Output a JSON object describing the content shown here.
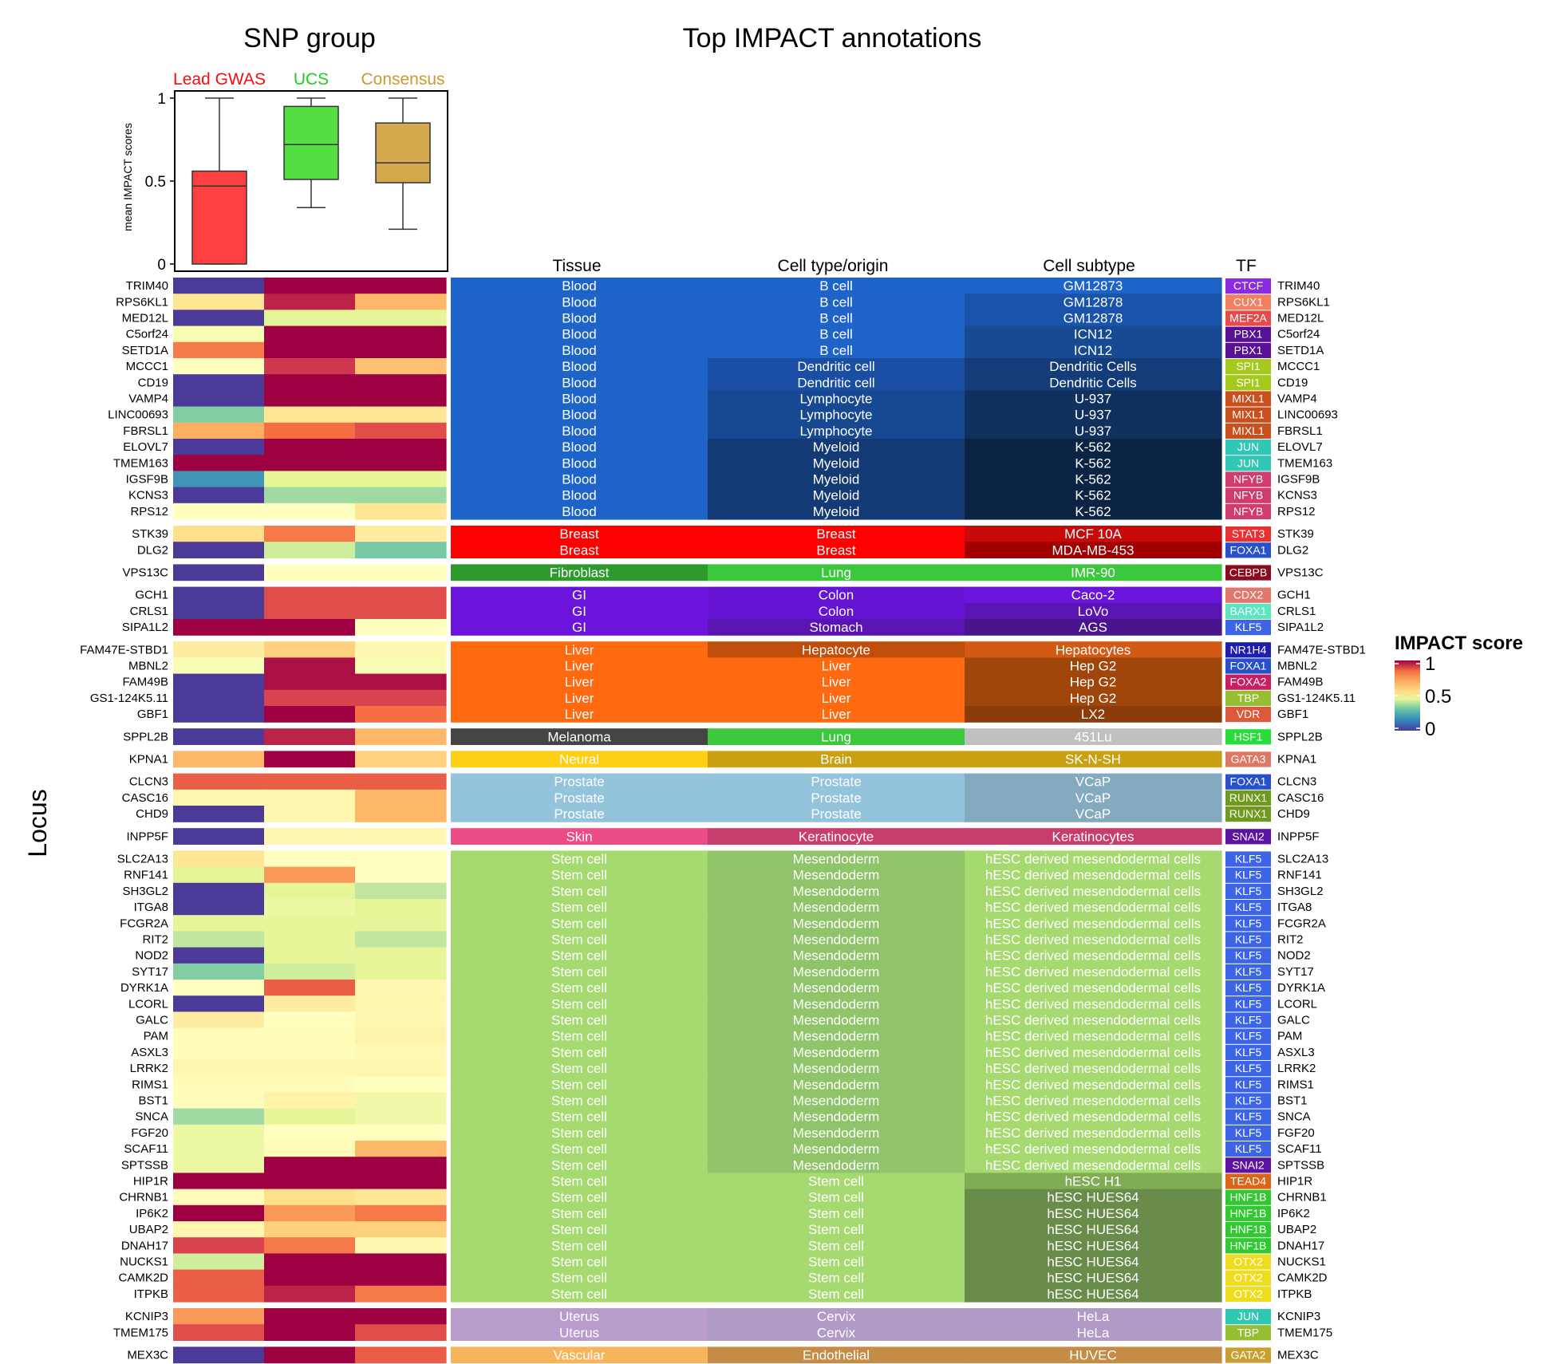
{
  "headers": {
    "snp_group": "SNP group",
    "top_impact": "Top IMPACT annotations",
    "locus_axis": "Locus",
    "tissue": "Tissue",
    "cell_type": "Cell type/origin",
    "cell_subtype": "Cell subtype",
    "tf": "TF"
  },
  "legend": {
    "title": "IMPACT score",
    "max_label": "1",
    "mid_label": "0.5",
    "min_label": "0"
  },
  "colors": {
    "low": "#4b3a97",
    "mid": "#fdfebd",
    "high": "#9e0142"
  },
  "chart_data": [
    {
      "type": "box",
      "ylabel": "mean IMPACT scores",
      "ylim": [
        0,
        1
      ],
      "yticks": [
        "0",
        "0.5",
        "1"
      ],
      "boxes": [
        {
          "name": "Lead GWAS",
          "color": "#ff4040",
          "label_color": "#ee1111",
          "min": 0.0,
          "q1": 0.0,
          "median": 0.47,
          "q3": 0.56,
          "max": 1.0
        },
        {
          "name": "UCS",
          "color": "#55dd44",
          "label_color": "#22cc22",
          "min": 0.34,
          "q1": 0.51,
          "median": 0.72,
          "q3": 0.95,
          "max": 1.0
        },
        {
          "name": "Consensus",
          "color": "#d4a84c",
          "label_color": "#c99a2e",
          "min": 0.21,
          "q1": 0.49,
          "median": 0.61,
          "q3": 0.85,
          "max": 1.0
        }
      ]
    },
    {
      "type": "heatmap",
      "columns": [
        "Lead GWAS",
        "UCS",
        "Consensus"
      ],
      "groups": [
        {
          "loci": [
            [
              "TRIM40",
              0.0,
              1.0,
              1.0,
              "Blood",
              "B cell",
              "GM12873",
              "CTCF",
              "#8a2be2"
            ],
            [
              "RPS6KL1",
              0.6,
              0.95,
              0.7,
              "Blood",
              "B cell",
              "GM12878",
              "CUX1",
              "#f08060"
            ],
            [
              "MED12L",
              0.0,
              0.45,
              0.45,
              "Blood",
              "B cell",
              "GM12878",
              "MEF2A",
              "#e64a4a"
            ],
            [
              "C5orf24",
              0.5,
              1.0,
              1.0,
              "Blood",
              "B cell",
              "ICN12",
              "PBX1",
              "#5a1094"
            ],
            [
              "SETD1A",
              0.8,
              1.0,
              1.0,
              "Blood",
              "B cell",
              "ICN12",
              "PBX1",
              "#5a1094"
            ],
            [
              "MCCC1",
              0.52,
              0.92,
              0.68,
              "Blood",
              "Dendritic cell",
              "Dendritic Cells",
              "SPI1",
              "#a5c81c"
            ],
            [
              "CD19",
              0.0,
              1.0,
              1.0,
              "Blood",
              "Dendritic cell",
              "Dendritic Cells",
              "SPI1",
              "#a5c81c"
            ],
            [
              "VAMP4",
              0.0,
              1.0,
              1.0,
              "Blood",
              "Lymphocyte",
              "U-937",
              "MIXL1",
              "#c8501e"
            ],
            [
              "LINC00693",
              0.3,
              0.6,
              0.6,
              "Blood",
              "Lymphocyte",
              "U-937",
              "MIXL1",
              "#c8501e"
            ],
            [
              "FBRSL1",
              0.72,
              0.82,
              0.88,
              "Blood",
              "Lymphocyte",
              "U-937",
              "MIXL1",
              "#c8501e"
            ],
            [
              "ELOVL7",
              0.0,
              1.0,
              1.0,
              "Blood",
              "Myeloid",
              "K-562",
              "JUN",
              "#30c8b4"
            ],
            [
              "TMEM163",
              1.0,
              1.0,
              1.0,
              "Blood",
              "Myeloid",
              "K-562",
              "JUN",
              "#30c8b4"
            ],
            [
              "IGSF9B",
              0.15,
              0.45,
              0.45,
              "Blood",
              "Myeloid",
              "K-562",
              "NFYB",
              "#d03c6e"
            ],
            [
              "KCNS3",
              0.0,
              0.35,
              0.35,
              "Blood",
              "Myeloid",
              "K-562",
              "NFYB",
              "#d03c6e"
            ],
            [
              "RPS12",
              0.52,
              0.52,
              0.6,
              "Blood",
              "Myeloid",
              "K-562",
              "NFYB",
              "#d03c6e"
            ]
          ]
        },
        {
          "loci": [
            [
              "STK39",
              0.62,
              0.8,
              0.58,
              "Breast",
              "Breast",
              "MCF 10A",
              "STAT3",
              "#e63232"
            ],
            [
              "DLG2",
              0.0,
              0.42,
              0.28,
              "Breast",
              "Breast",
              "MDA-MB-453",
              "FOXA1",
              "#2850c8"
            ]
          ]
        },
        {
          "loci": [
            [
              "VPS13C",
              0.0,
              0.52,
              0.52,
              "Fibroblast",
              "Lung",
              "IMR-90",
              "CEBPB",
              "#8c0a1e"
            ]
          ]
        },
        {
          "loci": [
            [
              "GCH1",
              0.0,
              0.88,
              0.88,
              "GI",
              "Colon",
              "Caco-2",
              "CDX2",
              "#e0786e"
            ],
            [
              "CRLS1",
              0.0,
              0.88,
              0.88,
              "GI",
              "Colon",
              "LoVo",
              "BARX1",
              "#5ae6c0"
            ],
            [
              "SIPA1L2",
              1.0,
              1.0,
              0.52,
              "GI",
              "Stomach",
              "AGS",
              "KLF5",
              "#3c64e6"
            ]
          ]
        },
        {
          "loci": [
            [
              "FAM47E-STBD1",
              0.58,
              0.65,
              0.55,
              "Liver",
              "Hepatocyte",
              "Hepatocytes",
              "NR1H4",
              "#1e1eaa"
            ],
            [
              "MBNL2",
              0.5,
              0.98,
              0.5,
              "Liver",
              "Liver",
              "Hep G2",
              "FOXA1",
              "#2850c8"
            ],
            [
              "FAM49B",
              0.0,
              0.98,
              0.98,
              "Liver",
              "Liver",
              "Hep G2",
              "FOXA2",
              "#c81e64"
            ],
            [
              "GS1-124K5.11",
              0.0,
              0.9,
              0.9,
              "Liver",
              "Liver",
              "Hep G2",
              "TBP",
              "#96be32"
            ],
            [
              "GBF1",
              0.0,
              1.0,
              0.82,
              "Liver",
              "Liver",
              "LX2",
              "VDR",
              "#dc5a3c"
            ]
          ]
        },
        {
          "loci": [
            [
              "SPPL2B",
              0.0,
              0.95,
              0.7,
              "Melanoma",
              "Lung",
              "451Lu",
              "HSF1",
              "#28dc3c"
            ]
          ]
        },
        {
          "loci": [
            [
              "KPNA1",
              0.7,
              1.0,
              0.65,
              "Neural",
              "Brain",
              "SK-N-SH",
              "GATA3",
              "#dc7864"
            ]
          ]
        },
        {
          "loci": [
            [
              "CLCN3",
              0.85,
              0.85,
              0.85,
              "Prostate",
              "Prostate",
              "VCaP",
              "FOXA1",
              "#2850c8"
            ],
            [
              "CASC16",
              0.55,
              0.55,
              0.7,
              "Prostate",
              "Prostate",
              "VCaP",
              "RUNX1",
              "#6e9a1e"
            ],
            [
              "CHD9",
              0.0,
              0.55,
              0.7,
              "Prostate",
              "Prostate",
              "VCaP",
              "RUNX1",
              "#6e9a1e"
            ]
          ]
        },
        {
          "loci": [
            [
              "INPP5F",
              0.0,
              0.55,
              0.55,
              "Skin",
              "Keratinocyte",
              "Keratinocytes",
              "SNAI2",
              "#5a14a0"
            ]
          ]
        },
        {
          "loci": [
            [
              "SLC2A13",
              0.6,
              0.52,
              0.52,
              "Stem cell",
              "Mesendoderm",
              "hESC derived mesendodermal cells",
              "KLF5",
              "#3c64e6"
            ],
            [
              "RNF141",
              0.45,
              0.75,
              0.52,
              "Stem cell",
              "Mesendoderm",
              "hESC derived mesendodermal cells",
              "KLF5",
              "#3c64e6"
            ],
            [
              "SH3GL2",
              0.0,
              0.45,
              0.4,
              "Stem cell",
              "Mesendoderm",
              "hESC derived mesendodermal cells",
              "KLF5",
              "#3c64e6"
            ],
            [
              "ITGA8",
              0.0,
              0.47,
              0.45,
              "Stem cell",
              "Mesendoderm",
              "hESC derived mesendodermal cells",
              "KLF5",
              "#3c64e6"
            ],
            [
              "FCGR2A",
              0.45,
              0.45,
              0.45,
              "Stem cell",
              "Mesendoderm",
              "hESC derived mesendodermal cells",
              "KLF5",
              "#3c64e6"
            ],
            [
              "RIT2",
              0.4,
              0.45,
              0.4,
              "Stem cell",
              "Mesendoderm",
              "hESC derived mesendodermal cells",
              "KLF5",
              "#3c64e6"
            ],
            [
              "NOD2",
              0.0,
              0.45,
              0.45,
              "Stem cell",
              "Mesendoderm",
              "hESC derived mesendodermal cells",
              "KLF5",
              "#3c64e6"
            ],
            [
              "SYT17",
              0.3,
              0.42,
              0.45,
              "Stem cell",
              "Mesendoderm",
              "hESC derived mesendodermal cells",
              "KLF5",
              "#3c64e6"
            ],
            [
              "DYRK1A",
              0.52,
              0.85,
              0.55,
              "Stem cell",
              "Mesendoderm",
              "hESC derived mesendodermal cells",
              "KLF5",
              "#3c64e6"
            ],
            [
              "LCORL",
              0.0,
              0.58,
              0.55,
              "Stem cell",
              "Mesendoderm",
              "hESC derived mesendodermal cells",
              "KLF5",
              "#3c64e6"
            ],
            [
              "GALC",
              0.58,
              0.52,
              0.55,
              "Stem cell",
              "Mesendoderm",
              "hESC derived mesendodermal cells",
              "KLF5",
              "#3c64e6"
            ],
            [
              "PAM",
              0.53,
              0.53,
              0.56,
              "Stem cell",
              "Mesendoderm",
              "hESC derived mesendodermal cells",
              "KLF5",
              "#3c64e6"
            ],
            [
              "ASXL3",
              0.53,
              0.53,
              0.54,
              "Stem cell",
              "Mesendoderm",
              "hESC derived mesendodermal cells",
              "KLF5",
              "#3c64e6"
            ],
            [
              "LRRK2",
              0.55,
              0.55,
              0.55,
              "Stem cell",
              "Mesendoderm",
              "hESC derived mesendodermal cells",
              "KLF5",
              "#3c64e6"
            ],
            [
              "RIMS1",
              0.53,
              0.53,
              0.52,
              "Stem cell",
              "Mesendoderm",
              "hESC derived mesendodermal cells",
              "KLF5",
              "#3c64e6"
            ],
            [
              "BST1",
              0.53,
              0.56,
              0.48,
              "Stem cell",
              "Mesendoderm",
              "hESC derived mesendodermal cells",
              "KLF5",
              "#3c64e6"
            ],
            [
              "SNCA",
              0.35,
              0.45,
              0.48,
              "Stem cell",
              "Mesendoderm",
              "hESC derived mesendodermal cells",
              "KLF5",
              "#3c64e6"
            ],
            [
              "FGF20",
              0.47,
              0.52,
              0.52,
              "Stem cell",
              "Mesendoderm",
              "hESC derived mesendodermal cells",
              "KLF5",
              "#3c64e6"
            ],
            [
              "SCAF11",
              0.47,
              0.53,
              0.7,
              "Stem cell",
              "Mesendoderm",
              "hESC derived mesendodermal cells",
              "KLF5",
              "#3c64e6"
            ],
            [
              "SPTSSB",
              0.47,
              1.0,
              1.0,
              "Stem cell",
              "Mesendoderm",
              "hESC derived mesendodermal cells",
              "SNAI2",
              "#5a14a0"
            ],
            [
              "HIP1R",
              1.0,
              1.0,
              1.0,
              "Stem cell",
              "Stem cell",
              "hESC H1",
              "TEAD4",
              "#dc6414"
            ],
            [
              "CHRNB1",
              0.53,
              0.62,
              0.6,
              "Stem cell",
              "Stem cell",
              "hESC HUES64",
              "HNF1B",
              "#32c832"
            ],
            [
              "IP6K2",
              1.0,
              0.75,
              0.8,
              "Stem cell",
              "Stem cell",
              "hESC HUES64",
              "HNF1B",
              "#32c832"
            ],
            [
              "UBAP2",
              0.55,
              0.65,
              0.65,
              "Stem cell",
              "Stem cell",
              "hESC HUES64",
              "HNF1B",
              "#32c832"
            ],
            [
              "DNAH17",
              0.9,
              0.8,
              0.55,
              "Stem cell",
              "Stem cell",
              "hESC HUES64",
              "HNF1B",
              "#32c832"
            ],
            [
              "NUCKS1",
              0.42,
              1.0,
              1.0,
              "Stem cell",
              "Stem cell",
              "hESC HUES64",
              "OTX2",
              "#f0dc1e"
            ],
            [
              "CAMK2D",
              0.85,
              1.0,
              1.0,
              "Stem cell",
              "Stem cell",
              "hESC HUES64",
              "OTX2",
              "#f0dc1e"
            ],
            [
              "ITPKB",
              0.85,
              0.95,
              0.8,
              "Stem cell",
              "Stem cell",
              "hESC HUES64",
              "OTX2",
              "#f0dc1e"
            ]
          ]
        },
        {
          "loci": [
            [
              "KCNIP3",
              0.75,
              1.0,
              1.0,
              "Uterus",
              "Cervix",
              "HeLa",
              "JUN",
              "#30c8b4"
            ],
            [
              "TMEM175",
              0.88,
              1.0,
              0.88,
              "Uterus",
              "Cervix",
              "HeLa",
              "TBP",
              "#96be32"
            ]
          ]
        },
        {
          "loci": [
            [
              "MEX3C",
              0.0,
              1.0,
              0.85,
              "Vascular",
              "Endothelial",
              "HUVEC",
              "GATA2",
              "#c8a032"
            ]
          ]
        }
      ],
      "tissue_colors": {
        "Blood": "#1e64c8",
        "Breast": "#ff0000",
        "Fibroblast": "#2e9a2e",
        "GI": "#6a14dc",
        "Liver": "#ff6a10",
        "Melanoma": "#444444",
        "Neural": "#ffcf14",
        "Prostate": "#94c4dc",
        "Skin": "#ec4c86",
        "Stem cell": "#a6da70",
        "Uterus": "#b89ccc",
        "Vascular": "#f8b45a"
      },
      "celltype_colors": {
        "B cell": "#1e64c8",
        "Dendritic cell": "#1a4ea2",
        "Lymphocyte": "#174892",
        "Myeloid": "#143a76",
        "Breast": "#ff0000",
        "Lung": "#3cc83c",
        "Colon": "#6414d2",
        "Stomach": "#5a14b4",
        "Hepatocyte": "#be4e0a",
        "Liver": "#ff6a10",
        "Brain": "#c8a012",
        "Prostate": "#94c4dc",
        "Keratinocyte": "#c83c6e",
        "Mesendoderm": "#90c46a",
        "Stem cell": "#a6da70",
        "Cervix": "#b09ac6",
        "Endothelial": "#c48c46"
      },
      "subtype_colors": {
        "GM12873": "#1e64c8",
        "GM12878": "#1a54aa",
        "ICN12": "#174a92",
        "Dendritic Cells": "#143c78",
        "U-937": "#10305e",
        "K-562": "#0c2444",
        "MCF 10A": "#c80a0a",
        "MDA-MB-453": "#a00000",
        "IMR-90": "#3cc83c",
        "Caco-2": "#6a14dc",
        "LoVo": "#5a14b4",
        "AGS": "#4a148c",
        "Hepatocytes": "#d25a14",
        "Hep G2": "#a0460a",
        "LX2": "#8c3c0a",
        "451Lu": "#c0c0c0",
        "SK-N-SH": "#c8a012",
        "VCaP": "#84aac0",
        "Keratinocytes": "#c83c6e",
        "hESC derived mesendodermal cells": "#a6da70",
        "hESC H1": "#80ac54",
        "hESC HUES64": "#6a8c4a",
        "HeLa": "#b09ac6",
        "HUVEC": "#c48c46"
      }
    }
  ]
}
